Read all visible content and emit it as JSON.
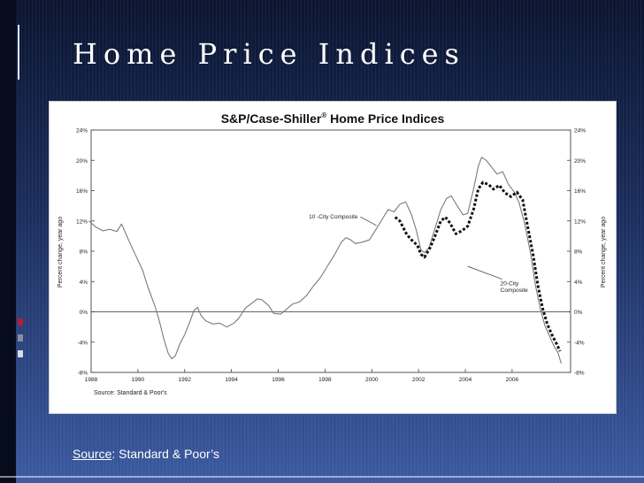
{
  "slide": {
    "title": "Home Price Indices",
    "source_word": "Source",
    "source_rest": ": Standard & Poor’s",
    "accent_colors": [
      "#b91e2e",
      "#8a8f99",
      "#d8dce3"
    ]
  },
  "chart_data": {
    "type": "line",
    "title": "S&P/Case-Shiller",
    "title_mark": "®",
    "title_rest": " Home Price Indices",
    "ylabel_left": "Percent change, year ago",
    "ylabel_right": "Percent change, year ago",
    "source_note": "Source: Standard & Poor's",
    "xlim": [
      1988,
      2008.5
    ],
    "ylim": [
      -8,
      24
    ],
    "x_ticks": [
      1988,
      1990,
      1992,
      1994,
      1996,
      1998,
      2000,
      2002,
      2004,
      2006
    ],
    "y_ticks": [
      -8,
      -4,
      0,
      4,
      8,
      12,
      16,
      20,
      24
    ],
    "y_tick_labels": [
      "-8%",
      "-4%",
      "0%",
      "4%",
      "8%",
      "12%",
      "16%",
      "20%",
      "24%"
    ],
    "grid": false,
    "zero_line": true,
    "series": [
      {
        "name": "10 -City Composite",
        "style": "solid",
        "color": "#7a7a7a",
        "points": [
          [
            1987.9,
            12
          ],
          [
            1988.2,
            11.2
          ],
          [
            1988.5,
            10.7
          ],
          [
            1988.8,
            10.9
          ],
          [
            1989.1,
            10.6
          ],
          [
            1989.3,
            11.6
          ],
          [
            1989.6,
            9.5
          ],
          [
            1989.9,
            7.5
          ],
          [
            1990.2,
            5.5
          ],
          [
            1990.4,
            3.5
          ],
          [
            1990.7,
            1
          ],
          [
            1990.9,
            -1
          ],
          [
            1991.1,
            -3.5
          ],
          [
            1991.3,
            -5.5
          ],
          [
            1991.45,
            -6.2
          ],
          [
            1991.6,
            -5.8
          ],
          [
            1991.8,
            -4.2
          ],
          [
            1992.0,
            -3
          ],
          [
            1992.2,
            -1.5
          ],
          [
            1992.4,
            0.2
          ],
          [
            1992.55,
            0.6
          ],
          [
            1992.7,
            -0.5
          ],
          [
            1992.9,
            -1.2
          ],
          [
            1993.2,
            -1.6
          ],
          [
            1993.5,
            -1.5
          ],
          [
            1993.8,
            -2
          ],
          [
            1994.1,
            -1.5
          ],
          [
            1994.3,
            -0.9
          ],
          [
            1994.6,
            0.5
          ],
          [
            1994.9,
            1.2
          ],
          [
            1995.1,
            1.7
          ],
          [
            1995.3,
            1.6
          ],
          [
            1995.6,
            0.8
          ],
          [
            1995.8,
            -0.2
          ],
          [
            1996.1,
            -0.3
          ],
          [
            1996.3,
            0.2
          ],
          [
            1996.6,
            1
          ],
          [
            1996.9,
            1.3
          ],
          [
            1997.2,
            2.1
          ],
          [
            1997.5,
            3.4
          ],
          [
            1997.8,
            4.5
          ],
          [
            1998.1,
            6
          ],
          [
            1998.4,
            7.5
          ],
          [
            1998.7,
            9.2
          ],
          [
            1998.9,
            9.8
          ],
          [
            1999.1,
            9.5
          ],
          [
            1999.3,
            9
          ],
          [
            1999.6,
            9.2
          ],
          [
            1999.9,
            9.5
          ],
          [
            2000.2,
            11
          ],
          [
            2000.5,
            12.5
          ],
          [
            2000.7,
            13.5
          ],
          [
            2000.95,
            13.2
          ],
          [
            2001.2,
            14.2
          ],
          [
            2001.45,
            14.5
          ],
          [
            2001.7,
            12.8
          ],
          [
            2001.9,
            10.8
          ],
          [
            2002.1,
            8.2
          ],
          [
            2002.25,
            7.8
          ],
          [
            2002.45,
            8.5
          ],
          [
            2002.7,
            11
          ],
          [
            2002.95,
            13.5
          ],
          [
            2003.2,
            15
          ],
          [
            2003.4,
            15.3
          ],
          [
            2003.65,
            14
          ],
          [
            2003.9,
            12.8
          ],
          [
            2004.1,
            13
          ],
          [
            2004.35,
            16.2
          ],
          [
            2004.55,
            19.2
          ],
          [
            2004.7,
            20.4
          ],
          [
            2004.9,
            20
          ],
          [
            2005.1,
            19.2
          ],
          [
            2005.35,
            18.2
          ],
          [
            2005.6,
            18.5
          ],
          [
            2005.85,
            16.8
          ],
          [
            2006.1,
            15.8
          ],
          [
            2006.3,
            14.4
          ],
          [
            2006.55,
            11.5
          ],
          [
            2006.8,
            7.5
          ],
          [
            2007.0,
            3.5
          ],
          [
            2007.2,
            0.5
          ],
          [
            2007.4,
            -1.8
          ],
          [
            2007.6,
            -3.2
          ],
          [
            2007.8,
            -4.6
          ],
          [
            2007.95,
            -5.3
          ],
          [
            2008.1,
            -6.8
          ]
        ]
      },
      {
        "name": "20-City Composite",
        "name_lines": [
          "20-City",
          "Composite"
        ],
        "style": "dashed",
        "color": "#111111",
        "points": [
          [
            2001.0,
            12.5
          ],
          [
            2001.2,
            12
          ],
          [
            2001.5,
            10.2
          ],
          [
            2001.7,
            9.5
          ],
          [
            2001.95,
            8.8
          ],
          [
            2002.1,
            7.6
          ],
          [
            2002.25,
            7.2
          ],
          [
            2002.5,
            8.5
          ],
          [
            2002.7,
            10
          ],
          [
            2002.95,
            12
          ],
          [
            2003.15,
            12.5
          ],
          [
            2003.35,
            11.7
          ],
          [
            2003.6,
            10.3
          ],
          [
            2003.85,
            10.7
          ],
          [
            2004.1,
            11.3
          ],
          [
            2004.35,
            13.5
          ],
          [
            2004.55,
            16.2
          ],
          [
            2004.75,
            17.1
          ],
          [
            2005.0,
            16.8
          ],
          [
            2005.2,
            16.2
          ],
          [
            2005.45,
            16.7
          ],
          [
            2005.7,
            15.7
          ],
          [
            2005.95,
            15.2
          ],
          [
            2006.2,
            15.8
          ],
          [
            2006.45,
            14.8
          ],
          [
            2006.65,
            11.5
          ],
          [
            2006.9,
            7.5
          ],
          [
            2007.1,
            3.5
          ],
          [
            2007.3,
            0.5
          ],
          [
            2007.5,
            -1.6
          ],
          [
            2007.7,
            -3
          ],
          [
            2007.9,
            -4.2
          ],
          [
            2008.05,
            -5.2
          ]
        ]
      }
    ],
    "annotations": [
      {
        "text": "10 -City Composite",
        "series": 0,
        "at": [
          1999.4,
          12.3
        ],
        "target": [
          2000.2,
          11.4
        ]
      },
      {
        "text": "20-City Composite",
        "series": 1,
        "at": [
          2005.5,
          3.5
        ],
        "target": [
          2004.1,
          6
        ]
      }
    ]
  }
}
